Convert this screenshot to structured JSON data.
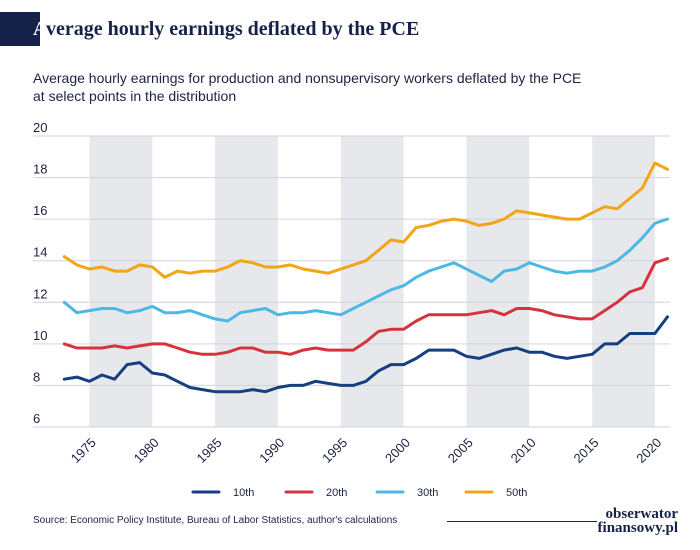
{
  "header": {
    "title_first_letter": "A",
    "title_rest": "verage hourly earnings deflated by the PCE"
  },
  "subtitle": {
    "line1": "Average hourly earnings for production and nonsupervisory workers deflated by the PCE",
    "line2": "at select points in the distribution"
  },
  "footer": {
    "source": "Source: Economic Policy Institute, Bureau of Labor Statistics, author's calculations",
    "logo_line1": "obserwator",
    "logo_line2": "finansowy.pl"
  },
  "chart_data": {
    "type": "line",
    "title": "Average hourly earnings deflated by the PCE",
    "xlabel": "",
    "ylabel": "",
    "xlim": [
      1972.5,
      2021.2
    ],
    "ylim": [
      6,
      20
    ],
    "yticks": [
      6,
      8,
      10,
      12,
      14,
      16,
      18,
      20
    ],
    "xticks": [
      1975,
      1980,
      1985,
      1990,
      1995,
      2000,
      2005,
      2010,
      2015,
      2020
    ],
    "grid": "horizontal",
    "legend_position": "bottom",
    "shaded_periods": [
      [
        1975,
        1980
      ],
      [
        1985,
        1990
      ],
      [
        1995,
        2000
      ],
      [
        2005,
        2010
      ],
      [
        2015,
        2020
      ]
    ],
    "shade_color": "#e6e8ec",
    "x": [
      1973,
      1974,
      1975,
      1976,
      1977,
      1978,
      1979,
      1980,
      1981,
      1982,
      1983,
      1984,
      1985,
      1986,
      1987,
      1988,
      1989,
      1990,
      1991,
      1992,
      1993,
      1994,
      1995,
      1996,
      1997,
      1998,
      1999,
      2000,
      2001,
      2002,
      2003,
      2004,
      2005,
      2006,
      2007,
      2008,
      2009,
      2010,
      2011,
      2012,
      2013,
      2014,
      2015,
      2016,
      2017,
      2018,
      2019,
      2020,
      2021
    ],
    "series": [
      {
        "name": "10th",
        "color": "#163f80",
        "values": [
          8.3,
          8.4,
          8.2,
          8.5,
          8.3,
          9.0,
          9.1,
          8.6,
          8.5,
          8.2,
          7.9,
          7.8,
          7.7,
          7.7,
          7.7,
          7.8,
          7.7,
          7.9,
          8.0,
          8.0,
          8.2,
          8.1,
          8.0,
          8.0,
          8.2,
          8.7,
          9.0,
          9.0,
          9.3,
          9.7,
          9.7,
          9.7,
          9.4,
          9.3,
          9.5,
          9.7,
          9.8,
          9.6,
          9.6,
          9.4,
          9.3,
          9.4,
          9.5,
          10.0,
          10.0,
          10.5,
          10.5,
          10.5,
          11.3
        ]
      },
      {
        "name": "20th",
        "color": "#d6343d",
        "values": [
          10.0,
          9.8,
          9.8,
          9.8,
          9.9,
          9.8,
          9.9,
          10.0,
          10.0,
          9.8,
          9.6,
          9.5,
          9.5,
          9.6,
          9.8,
          9.8,
          9.6,
          9.6,
          9.5,
          9.7,
          9.8,
          9.7,
          9.7,
          9.7,
          10.1,
          10.6,
          10.7,
          10.7,
          11.1,
          11.4,
          11.4,
          11.4,
          11.4,
          11.5,
          11.6,
          11.4,
          11.7,
          11.7,
          11.6,
          11.4,
          11.3,
          11.2,
          11.2,
          11.6,
          12.0,
          12.5,
          12.7,
          13.9,
          14.1
        ]
      },
      {
        "name": "30th",
        "color": "#4db8e6",
        "values": [
          12.0,
          11.5,
          11.6,
          11.7,
          11.7,
          11.5,
          11.6,
          11.8,
          11.5,
          11.5,
          11.6,
          11.4,
          11.2,
          11.1,
          11.5,
          11.6,
          11.7,
          11.4,
          11.5,
          11.5,
          11.6,
          11.5,
          11.4,
          11.7,
          12.0,
          12.3,
          12.6,
          12.8,
          13.2,
          13.5,
          13.7,
          13.9,
          13.6,
          13.3,
          13.0,
          13.5,
          13.6,
          13.9,
          13.7,
          13.5,
          13.4,
          13.5,
          13.5,
          13.7,
          14.0,
          14.5,
          15.1,
          15.8,
          16.0
        ]
      },
      {
        "name": "50th",
        "color": "#f2a516",
        "values": [
          14.2,
          13.8,
          13.6,
          13.7,
          13.5,
          13.5,
          13.8,
          13.7,
          13.2,
          13.5,
          13.4,
          13.5,
          13.5,
          13.7,
          14.0,
          13.9,
          13.7,
          13.7,
          13.8,
          13.6,
          13.5,
          13.4,
          13.6,
          13.8,
          14.0,
          14.5,
          15.0,
          14.9,
          15.6,
          15.7,
          15.9,
          16.0,
          15.9,
          15.7,
          15.8,
          16.0,
          16.4,
          16.3,
          16.2,
          16.1,
          16.0,
          16.0,
          16.3,
          16.6,
          16.5,
          17.0,
          17.5,
          18.7,
          18.4
        ]
      }
    ]
  }
}
